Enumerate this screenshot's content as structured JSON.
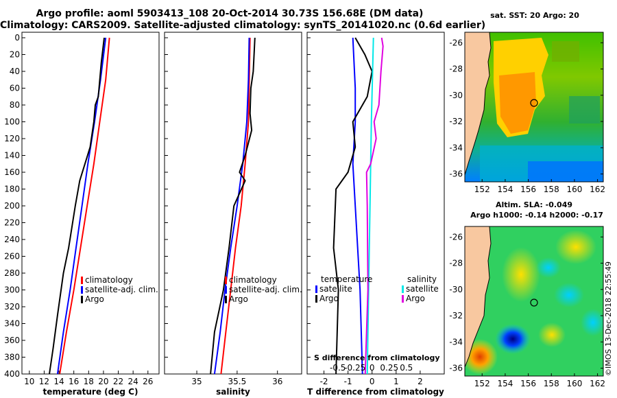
{
  "header": {
    "line1": "Argo profile: aoml 5903413_108 20-Oct-2014 30.73S 156.68E (DM data)",
    "line2": "Climatology: CARS2009. Satellite-adjusted climatology: synTS_20141020.nc (0.6d earlier)"
  },
  "credit": "©IMOS 13-Dec-2018 22:55:49",
  "colors": {
    "climatology": "#ff0000",
    "satellite": "#0000ff",
    "argo": "#000000",
    "sat_salinity": "#00e8e8",
    "argo_salinity": "#e000e0",
    "land": "#f8c8a0"
  },
  "chart_data": [
    {
      "type": "line",
      "name": "temperature-profile",
      "xlabel": "temperature (deg C)",
      "ylabel": "depth",
      "xlim": [
        9,
        27.5
      ],
      "ylim": [
        400,
        0
      ],
      "xticks": [
        10,
        12,
        14,
        16,
        18,
        20,
        22,
        24,
        26
      ],
      "yticks": [
        0,
        20,
        40,
        60,
        80,
        100,
        120,
        140,
        160,
        180,
        200,
        220,
        240,
        260,
        280,
        300,
        320,
        340,
        360,
        380,
        400
      ],
      "legend": [
        "climatology",
        "satellite-adj. clim.",
        "Argo"
      ],
      "series": [
        {
          "name": "climatology",
          "color": "#ff0000",
          "depth": [
            0,
            50,
            100,
            150,
            200,
            250,
            300,
            350,
            400
          ],
          "values": [
            20.8,
            20.3,
            19.5,
            18.7,
            17.8,
            16.9,
            16.0,
            15.0,
            14.1
          ]
        },
        {
          "name": "satellite-adj. clim.",
          "color": "#0000ff",
          "depth": [
            0,
            50,
            100,
            150,
            200,
            250,
            300,
            350,
            400
          ],
          "values": [
            20.3,
            19.6,
            18.8,
            17.9,
            17.1,
            16.3,
            15.5,
            14.6,
            13.8
          ]
        },
        {
          "name": "Argo",
          "color": "#000000",
          "depth": [
            0,
            30,
            70,
            80,
            100,
            130,
            150,
            170,
            200,
            250,
            280,
            330,
            370,
            400
          ],
          "values": [
            20.1,
            19.7,
            19.3,
            18.9,
            18.7,
            18.2,
            17.5,
            16.8,
            16.2,
            15.3,
            14.6,
            13.8,
            13.2,
            12.7
          ]
        }
      ]
    },
    {
      "type": "line",
      "name": "salinity-profile",
      "xlabel": "salinity",
      "ylabel": "depth",
      "xlim": [
        34.6,
        36.3
      ],
      "ylim": [
        400,
        0
      ],
      "xticks": [
        35,
        35.5,
        36
      ],
      "xticklabels": [
        "35",
        "35.5",
        "36"
      ],
      "legend": [
        "climatology",
        "satellite-adj. clim.",
        "Argo"
      ],
      "series": [
        {
          "name": "climatology",
          "color": "#ff0000",
          "depth": [
            0,
            50,
            100,
            150,
            200,
            250,
            300,
            350,
            400
          ],
          "values": [
            35.66,
            35.65,
            35.64,
            35.6,
            35.55,
            35.48,
            35.42,
            35.36,
            35.3
          ]
        },
        {
          "name": "satellite-adj. clim.",
          "color": "#0000ff",
          "depth": [
            0,
            50,
            100,
            150,
            200,
            250,
            300,
            350,
            400
          ],
          "values": [
            35.65,
            35.64,
            35.62,
            35.57,
            35.5,
            35.42,
            35.35,
            35.29,
            35.22
          ]
        },
        {
          "name": "Argo",
          "color": "#000000",
          "depth": [
            0,
            40,
            60,
            90,
            110,
            140,
            160,
            170,
            200,
            250,
            300,
            350,
            400
          ],
          "values": [
            35.72,
            35.7,
            35.67,
            35.66,
            35.68,
            35.6,
            35.53,
            35.6,
            35.46,
            35.4,
            35.33,
            35.22,
            35.17
          ]
        }
      ]
    },
    {
      "type": "line",
      "name": "difference-profile",
      "xlabel": "T difference from climatology",
      "xlabel2": "S difference from climatology",
      "ylabel": "depth",
      "xlim": [
        -2.7,
        3
      ],
      "ylim": [
        400,
        0
      ],
      "xticks": [
        -2,
        -1,
        0,
        1,
        2
      ],
      "xticklabels": [
        "-2",
        "-1",
        "0",
        "1",
        "2"
      ],
      "sticks": [
        -0.5,
        -0.25,
        0,
        0.25,
        0.5
      ],
      "sticklabels": [
        "-0.5",
        "-0.25",
        "0",
        "0.25",
        "0.5"
      ],
      "legend_titles": [
        "temperature",
        "salinity"
      ],
      "legend": [
        "satellite",
        "Argo",
        "satellite",
        "Argo"
      ],
      "series": [
        {
          "name": "temperature satellite",
          "color": "#0000ff",
          "depth": [
            0,
            60,
            100,
            150,
            200,
            300,
            400
          ],
          "values": [
            -0.8,
            -0.7,
            -0.7,
            -0.8,
            -0.7,
            -0.5,
            -0.4
          ]
        },
        {
          "name": "temperature Argo",
          "color": "#000000",
          "depth": [
            0,
            20,
            40,
            70,
            100,
            130,
            160,
            180,
            250,
            300,
            400
          ],
          "values": [
            -0.7,
            -0.3,
            0.0,
            -0.2,
            -0.8,
            -0.7,
            -1.0,
            -1.5,
            -1.6,
            -1.4,
            -1.5
          ]
        },
        {
          "name": "salinity satellite",
          "color": "#00e8e8",
          "depth": [
            0,
            100,
            200,
            300,
            400
          ],
          "values": [
            0.02,
            -0.01,
            -0.03,
            -0.05,
            -0.07
          ]
        },
        {
          "name": "salinity Argo",
          "color": "#e000e0",
          "depth": [
            0,
            10,
            40,
            80,
            100,
            120,
            150,
            160,
            200,
            300,
            400
          ],
          "values": [
            0.14,
            0.16,
            0.13,
            0.1,
            0.03,
            0.06,
            -0.02,
            -0.08,
            -0.07,
            -0.06,
            -0.1
          ]
        }
      ]
    },
    {
      "type": "heatmap",
      "name": "sst-map",
      "title": "sat. SST: 20 Argo: 20",
      "xlim": [
        150.5,
        162.5
      ],
      "ylim": [
        -36.6,
        -25.2
      ],
      "xticks": [
        152,
        154,
        156,
        158,
        160,
        162
      ],
      "yticks": [
        -26,
        -28,
        -30,
        -32,
        -34,
        -36
      ],
      "argo_position": [
        156.68,
        -30.73
      ]
    },
    {
      "type": "heatmap",
      "name": "sla-map",
      "title": "Altim. SLA: -0.049",
      "subtitle": "Argo h1000: -0.14 h2000: -0.17",
      "xlim": [
        150.5,
        162.5
      ],
      "ylim": [
        -36.6,
        -25.2
      ],
      "xticks": [
        152,
        154,
        156,
        158,
        160,
        162
      ],
      "yticks": [
        -26,
        -28,
        -30,
        -32,
        -34,
        -36
      ],
      "argo_position": [
        156.68,
        -30.73
      ]
    }
  ]
}
